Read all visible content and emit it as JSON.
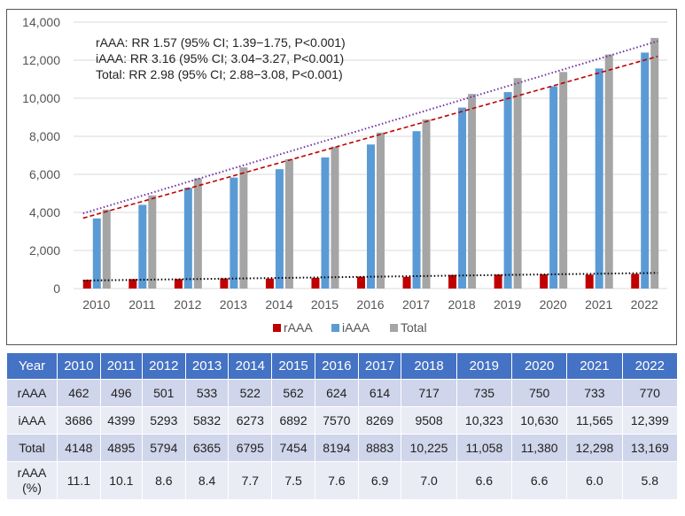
{
  "chart_data": {
    "type": "bar",
    "categories": [
      "2010",
      "2011",
      "2012",
      "2013",
      "2014",
      "2015",
      "2016",
      "2017",
      "2018",
      "2019",
      "2020",
      "2021",
      "2022"
    ],
    "series": [
      {
        "name": "rAAA",
        "color": "#c00000",
        "values": [
          462,
          496,
          501,
          533,
          522,
          562,
          624,
          614,
          717,
          735,
          750,
          733,
          770
        ]
      },
      {
        "name": "iAAA",
        "color": "#5b9bd5",
        "values": [
          3686,
          4399,
          5293,
          5832,
          6273,
          6892,
          7570,
          8269,
          9508,
          10323,
          10630,
          11565,
          12399
        ]
      },
      {
        "name": "Total",
        "color": "#a5a5a5",
        "values": [
          4148,
          4895,
          5794,
          6365,
          6795,
          7454,
          8194,
          8883,
          10225,
          11058,
          11380,
          12298,
          13169
        ]
      }
    ],
    "trendlines": [
      {
        "series": "rAAA",
        "color": "#000000",
        "style": "dotted",
        "start": 420,
        "end": 820
      },
      {
        "series": "iAAA",
        "color": "#c00000",
        "style": "dashed",
        "start": 3700,
        "end": 12200
      },
      {
        "series": "Total",
        "color": "#7030a0",
        "style": "dotted",
        "start": 3950,
        "end": 13000
      }
    ],
    "ylim": [
      0,
      14000
    ],
    "yticks": [
      "0",
      "2,000",
      "4,000",
      "6,000",
      "8,000",
      "10,000",
      "12,000",
      "14,000"
    ],
    "grid": true,
    "legend": "bottom",
    "annotations": [
      "rAAA: RR 1.57 (95% CI; 1.39−1.75, P<0.001)",
      "iAAA: RR 3.16 (95% CI; 3.04−3.27, P<0.001)",
      "Total: RR 2.98 (95% CI; 2.88−3.08, P<0.001)"
    ]
  },
  "table": {
    "header": [
      "Year",
      "2010",
      "2011",
      "2012",
      "2013",
      "2014",
      "2015",
      "2016",
      "2017",
      "2018",
      "2019",
      "2020",
      "2021",
      "2022"
    ],
    "rows": [
      [
        "rAAA",
        "462",
        "496",
        "501",
        "533",
        "522",
        "562",
        "624",
        "614",
        "717",
        "735",
        "750",
        "733",
        "770"
      ],
      [
        "iAAA",
        "3686",
        "4399",
        "5293",
        "5832",
        "6273",
        "6892",
        "7570",
        "8269",
        "9508",
        "10,323",
        "10,630",
        "11,565",
        "12,399"
      ],
      [
        "Total",
        "4148",
        "4895",
        "5794",
        "6365",
        "6795",
        "7454",
        "8194",
        "8883",
        "10,225",
        "11,058",
        "11,380",
        "12,298",
        "13,169"
      ],
      [
        "rAAA\n(%)",
        "11.1",
        "10.1",
        "8.6",
        "8.4",
        "7.7",
        "7.5",
        "7.6",
        "6.9",
        "7.0",
        "6.6",
        "6.6",
        "6.0",
        "5.8"
      ]
    ]
  }
}
